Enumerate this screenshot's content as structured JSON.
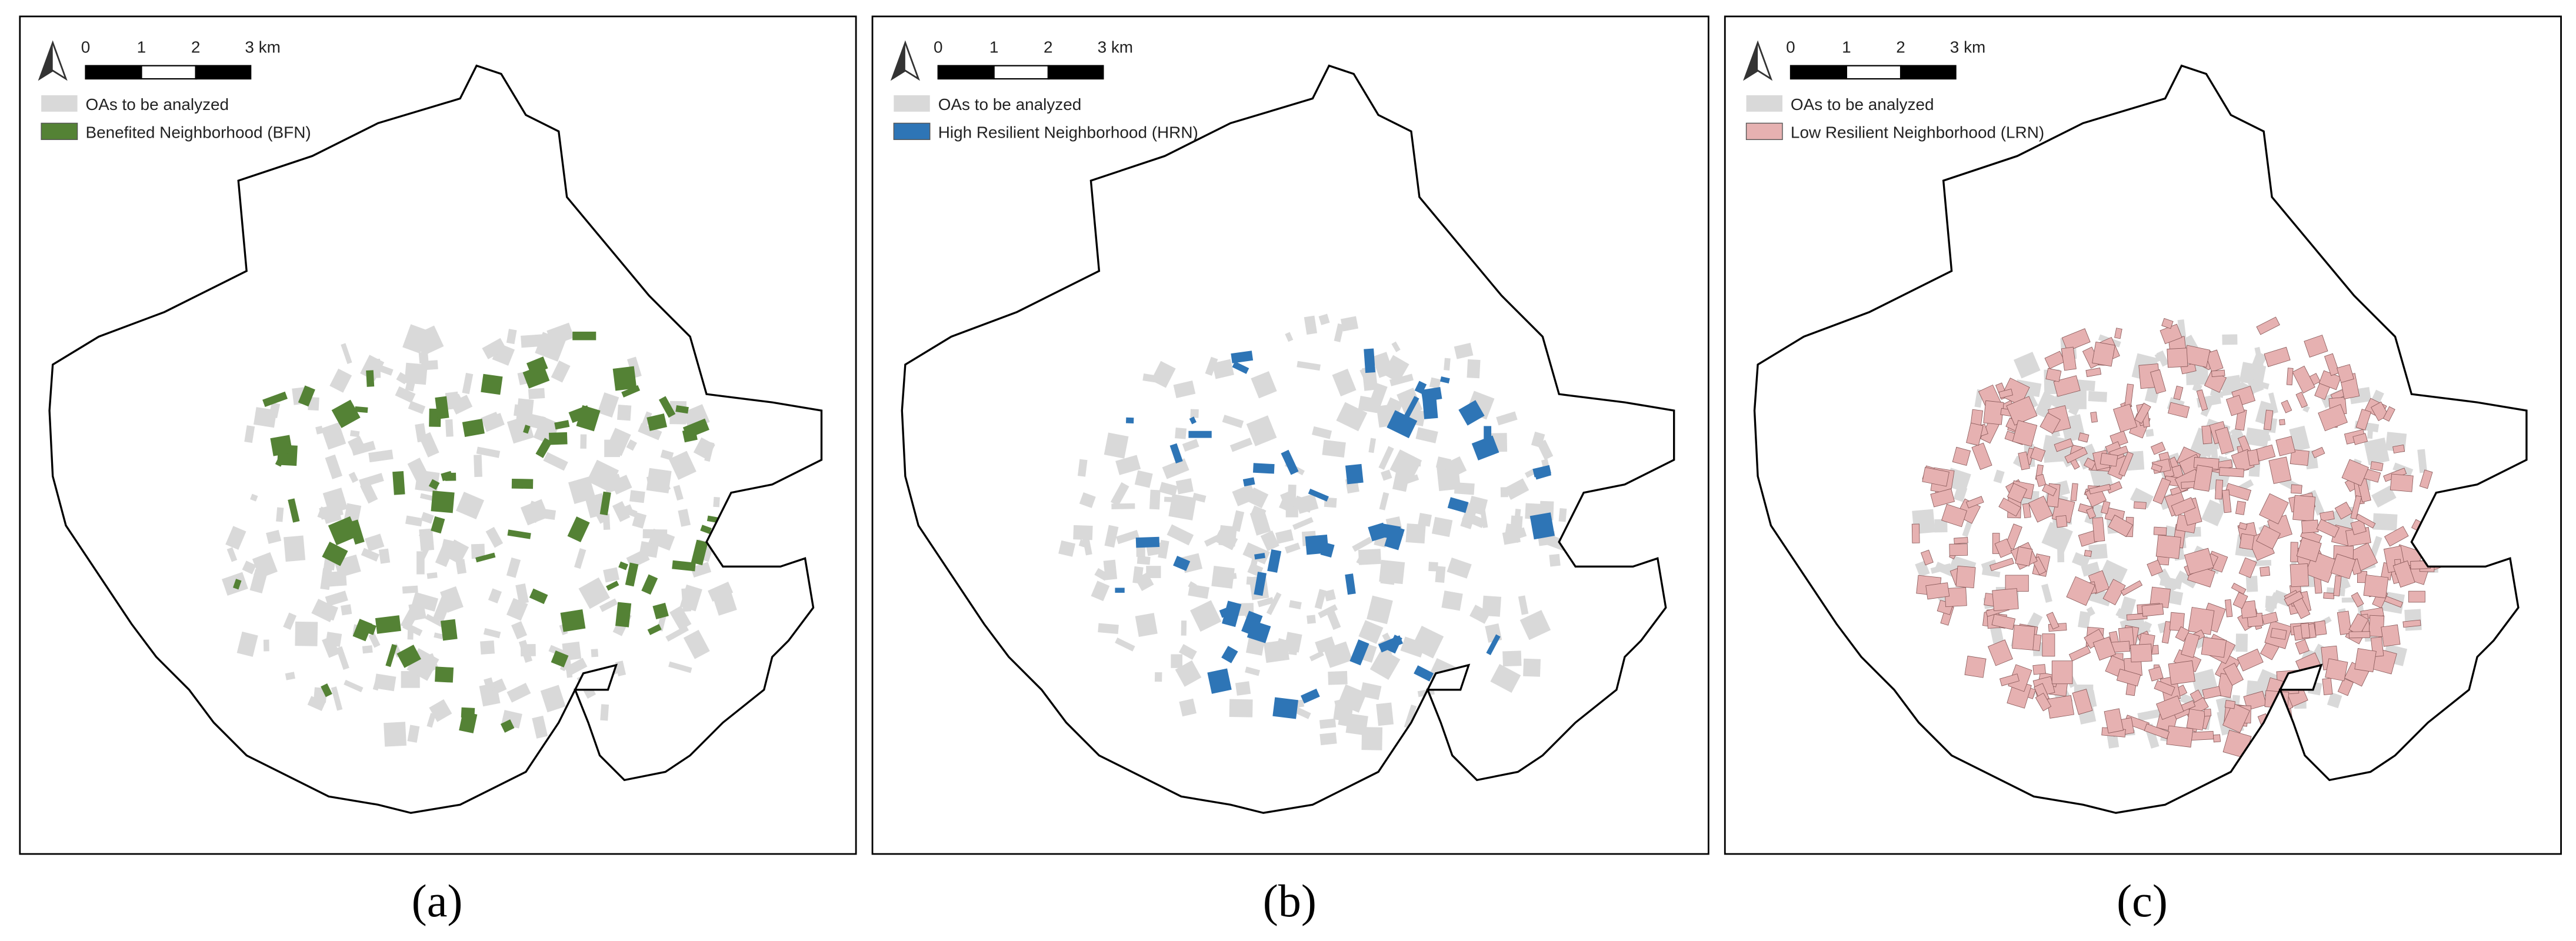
{
  "panels": [
    {
      "scale_labels": [
        "0",
        "1",
        "2",
        "3 km"
      ],
      "legend": [
        {
          "label": "OAs to be analyzed",
          "color": "#d9d9d9"
        },
        {
          "label": "Benefited Neighborhood (BFN)",
          "color": "#548235"
        }
      ],
      "caption": "(a)"
    },
    {
      "scale_labels": [
        "0",
        "1",
        "2",
        "3 km"
      ],
      "legend": [
        {
          "label": "OAs to be analyzed",
          "color": "#d9d9d9"
        },
        {
          "label": "High Resilient Neighborhood (HRN)",
          "color": "#2e75b6"
        }
      ],
      "caption": "(b)"
    },
    {
      "scale_labels": [
        "0",
        "1",
        "2",
        "3 km"
      ],
      "legend": [
        {
          "label": "OAs to be analyzed",
          "color": "#d9d9d9"
        },
        {
          "label": "Low Resilient Neighborhood (LRN)",
          "color": "#e6b1b1"
        }
      ],
      "caption": "(c)"
    }
  ]
}
